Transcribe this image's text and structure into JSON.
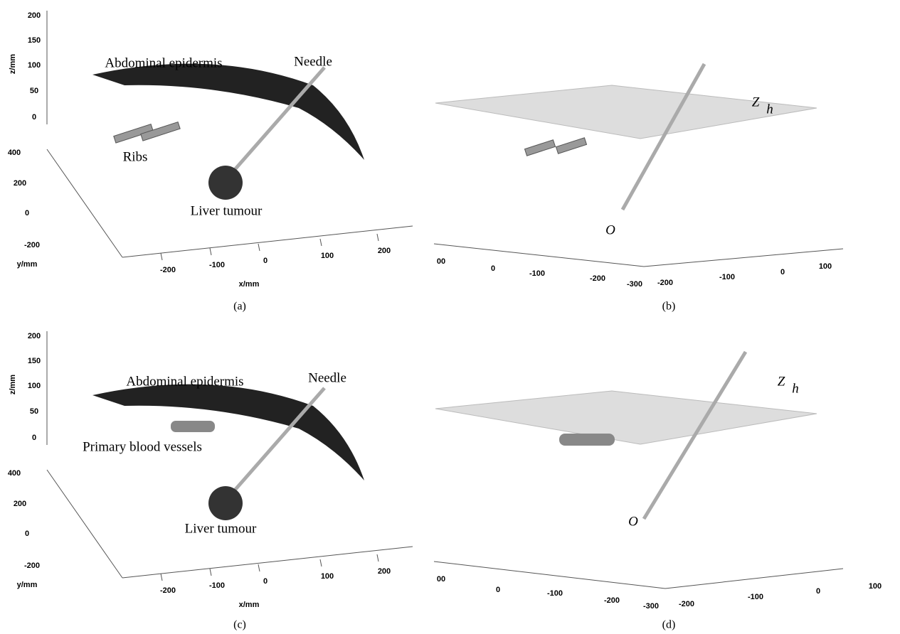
{
  "panels": [
    {
      "caption": "(a)",
      "z_label": "z/mm",
      "zticks": [
        200,
        150,
        100,
        50,
        0
      ],
      "y_label": "y/mm",
      "yticks": [
        400,
        200,
        0,
        -200
      ],
      "x_label": "x/mm",
      "xticks": [
        -200,
        -100,
        0,
        100,
        200
      ],
      "annotations": [
        "Abdominal epidermis",
        "Needle",
        "Ribs",
        "Liver tumour"
      ]
    },
    {
      "caption": "(b)",
      "plane_label": "Z",
      "plane_subscript": "h",
      "origin_label": "O",
      "left_ticks": [
        "00",
        0,
        -100,
        -200,
        -300
      ],
      "right_ticks": [
        -200,
        -100,
        0,
        100
      ]
    },
    {
      "caption": "(c)",
      "z_label": "z/mm",
      "zticks": [
        200,
        150,
        100,
        50,
        0
      ],
      "y_label": "y/mm",
      "yticks": [
        400,
        200,
        0,
        -200
      ],
      "x_label": "x/mm",
      "xticks": [
        -200,
        -100,
        0,
        100,
        200
      ],
      "annotations": [
        "Abdominal epidermis",
        "Needle",
        "Primary blood vessels",
        "Liver tumour"
      ]
    },
    {
      "caption": "(d)",
      "plane_label": "Z",
      "plane_subscript": "h",
      "origin_label": "O",
      "left_ticks": [
        "00",
        0,
        -100,
        -200,
        -300
      ],
      "right_ticks": [
        -200,
        -100,
        0,
        100
      ]
    }
  ]
}
